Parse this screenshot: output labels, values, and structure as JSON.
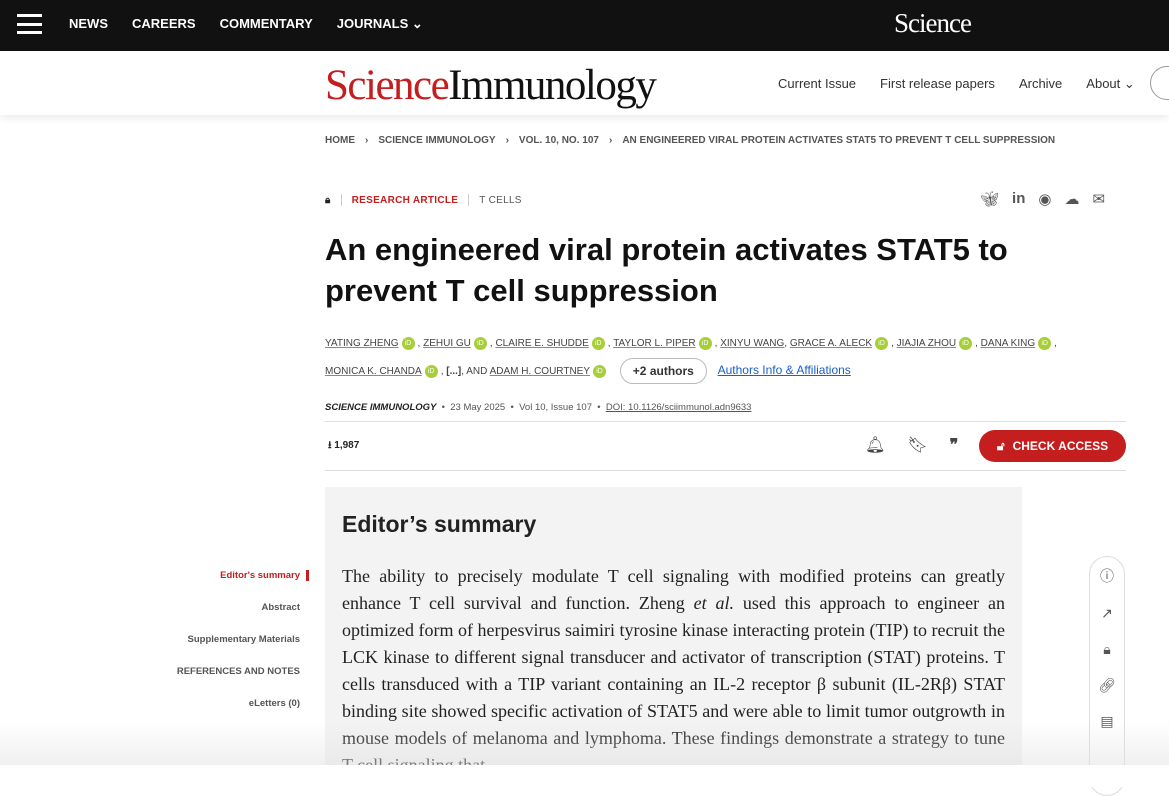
{
  "topnav": {
    "items": [
      "NEWS",
      "CAREERS",
      "COMMENTARY",
      "JOURNALS"
    ],
    "logo": "Science"
  },
  "header": {
    "brand_science": "Science",
    "brand_journal": "Immunology",
    "nav": [
      "Current Issue",
      "First release papers",
      "Archive",
      "About"
    ]
  },
  "breadcrumb": [
    "HOME",
    "SCIENCE IMMUNOLOGY",
    "VOL. 10, NO. 107",
    "AN ENGINEERED VIRAL PROTEIN ACTIVATES STAT5 TO PREVENT T CELL SUPPRESSION"
  ],
  "article": {
    "type": "RESEARCH ARTICLE",
    "topic": "T CELLS",
    "title": "An engineered viral protein activates STAT5 to prevent T cell suppression",
    "authors": [
      "YATING ZHENG",
      "ZEHUI GU",
      "CLAIRE E. SHUDDE",
      "TAYLOR L. PIPER",
      "XINYU WANG",
      "GRACE A. ALECK",
      "JIAJIA ZHOU",
      "DANA KING",
      "MONICA K. CHANDA",
      "ADAM H. COURTNEY"
    ],
    "ellipsis": "[...]",
    "and": "AND",
    "more_authors": "+2 authors",
    "affiliations": "Authors Info & Affiliations",
    "journal": "SCIENCE IMMUNOLOGY",
    "date": "23 May 2025",
    "volume": "Vol 10, Issue 107",
    "doi": "DOI: 10.1126/sciimmunol.adn9633",
    "downloads": "1,987",
    "access_label": "CHECK ACCESS"
  },
  "toc": [
    "Editor's summary",
    "Abstract",
    "Supplementary Materials",
    "REFERENCES AND NOTES",
    "eLetters (0)"
  ],
  "summary": {
    "heading": "Editor’s summary",
    "text_a": "The ability to precisely modulate T cell signaling with modified proteins can greatly enhance T cell survival and function. Zheng ",
    "etal": "et al.",
    "text_b": " used this approach to engineer an optimized form of herpesvirus saimiri tyrosine kinase interacting protein (TIP) to recruit the LCK kinase to different signal transducer and activator of transcription (STAT) proteins. T cells transduced with a TIP variant containing an IL-2 receptor β subunit (IL-2Rβ) STAT binding site showed specific activation of STAT5 and were able to limit tumor outgrowth in mouse models of melanoma and lymphoma. These findings demonstrate a strategy to tune T cell signaling that"
  }
}
